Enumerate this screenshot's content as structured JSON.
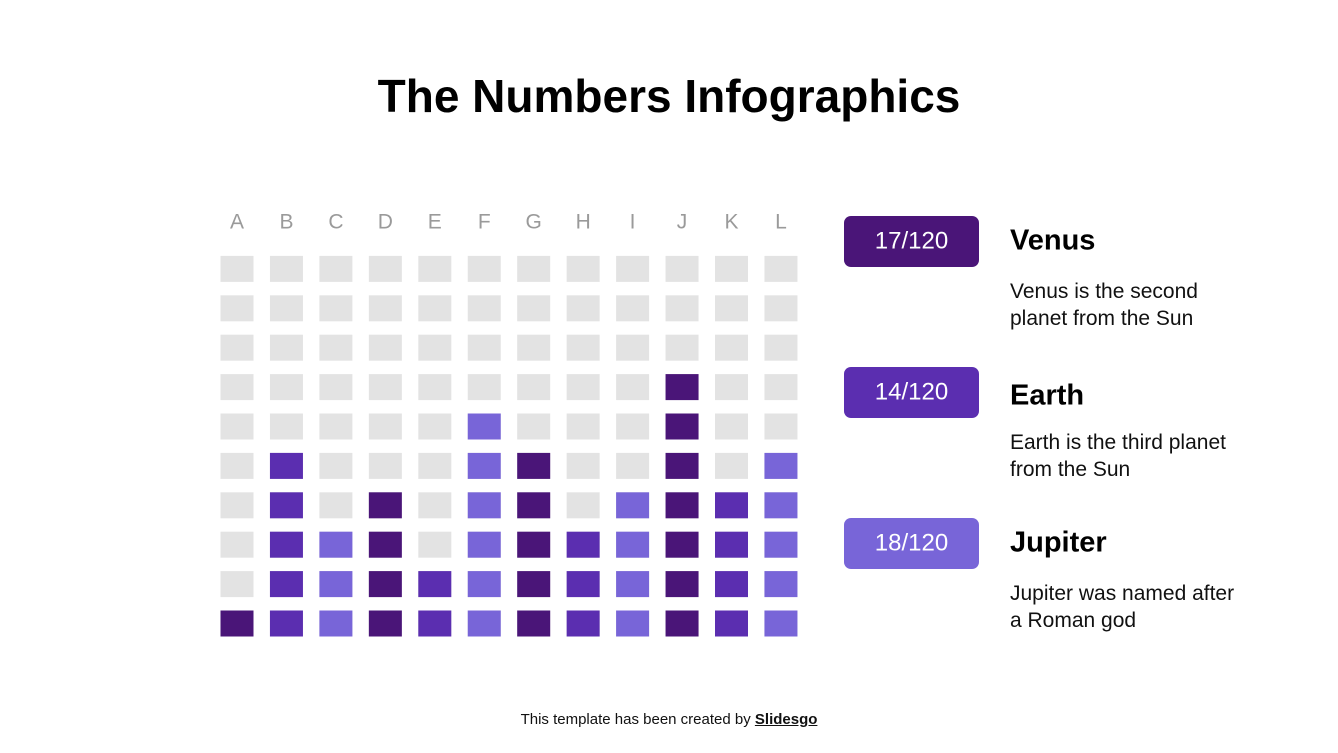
{
  "chart_data": {
    "type": "waffle",
    "title": "The Numbers Infographics",
    "categories": [
      "A",
      "B",
      "C",
      "D",
      "E",
      "F",
      "G",
      "H",
      "I",
      "J",
      "K",
      "L"
    ],
    "grid_rows": 10,
    "empty_color": "#e3e3e3",
    "series": [
      {
        "name": "Venus",
        "color": "#4a1578",
        "total_label": "17/120",
        "description": "Venus is the second planet from the Sun",
        "values": [
          1,
          null,
          null,
          4,
          null,
          null,
          5,
          null,
          null,
          7,
          null,
          null
        ]
      },
      {
        "name": "Earth",
        "color": "#5b2eb0",
        "total_label": "14/120",
        "description": "Earth is the third planet from the Sun",
        "values": [
          null,
          5,
          null,
          null,
          2,
          null,
          null,
          3,
          null,
          null,
          4,
          null
        ]
      },
      {
        "name": "Jupiter",
        "color": "#7865d8",
        "total_label": "18/120",
        "description": "Jupiter was named after a Roman god",
        "values": [
          null,
          null,
          3,
          null,
          null,
          6,
          null,
          null,
          4,
          null,
          null,
          5
        ]
      }
    ]
  },
  "footer": {
    "text": "This template has been created by",
    "link": "Slidesgo"
  }
}
